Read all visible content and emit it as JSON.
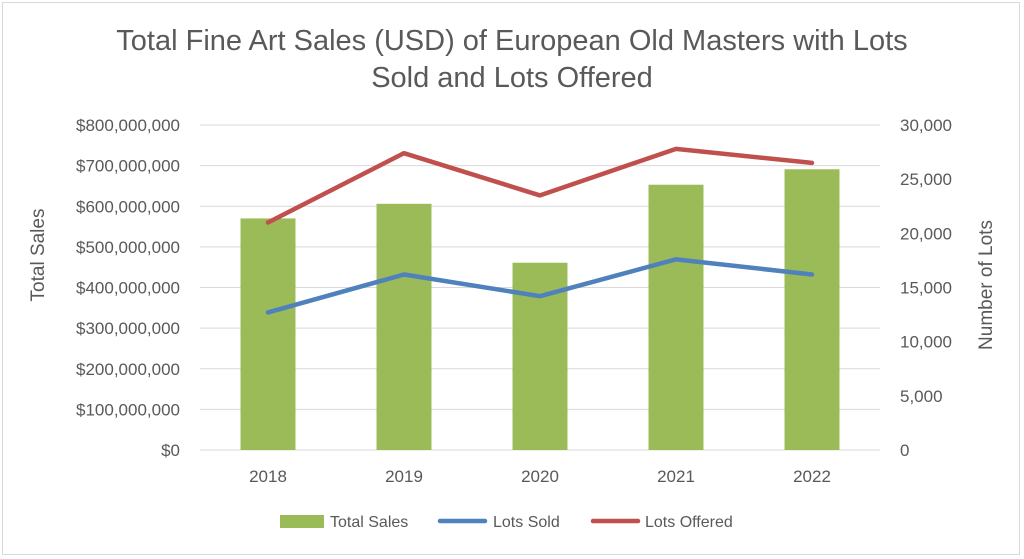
{
  "chart_data": {
    "type": "bar",
    "title_lines": [
      "Total Fine Art Sales (USD) of European Old Masters with Lots",
      "Sold and Lots Offered"
    ],
    "categories": [
      "2018",
      "2019",
      "2020",
      "2021",
      "2022"
    ],
    "ylabel_left": "Total Sales",
    "ylabel_right": "Number of Lots",
    "ylim_left": [
      0,
      800000000
    ],
    "ylim_right": [
      0,
      30000
    ],
    "yticks_left": [
      "$0",
      "$100,000,000",
      "$200,000,000",
      "$300,000,000",
      "$400,000,000",
      "$500,000,000",
      "$600,000,000",
      "$700,000,000",
      "$800,000,000"
    ],
    "yticks_right": [
      "0",
      "5,000",
      "10,000",
      "15,000",
      "20,000",
      "25,000",
      "30,000"
    ],
    "grid": true,
    "legend_position": "bottom",
    "series": [
      {
        "name": "Total Sales",
        "kind": "bar",
        "axis": "left",
        "color": "#9bbb59",
        "values": [
          570000000,
          606000000,
          461000000,
          653000000,
          691000000
        ]
      },
      {
        "name": "Lots Sold",
        "kind": "line",
        "axis": "right",
        "color": "#4f81bd",
        "values": [
          12700,
          16200,
          14200,
          17600,
          16200
        ]
      },
      {
        "name": "Lots Offered",
        "kind": "line",
        "axis": "right",
        "color": "#c0504d",
        "values": [
          21000,
          27400,
          23500,
          27800,
          26500
        ]
      }
    ]
  }
}
